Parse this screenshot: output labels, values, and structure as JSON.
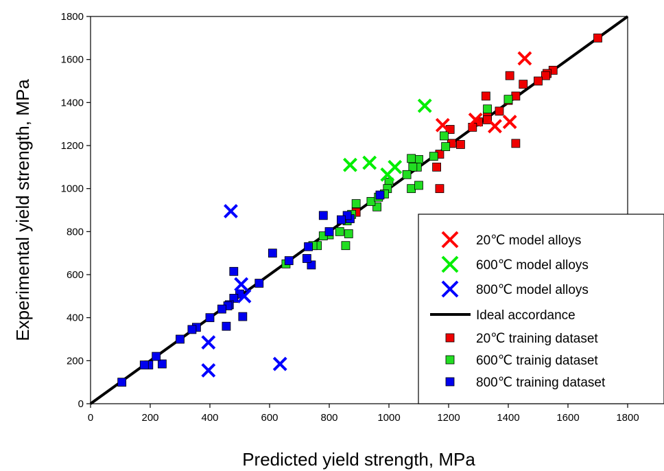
{
  "chart_data": {
    "type": "scatter",
    "xlabel": "Predicted yield strength, MPa",
    "ylabel": "Experimental yield strength, MPa",
    "xlim": [
      0,
      1800
    ],
    "ylim": [
      0,
      1800
    ],
    "xticks": [
      0,
      200,
      400,
      600,
      800,
      1000,
      1200,
      1400,
      1600,
      1800
    ],
    "yticks": [
      0,
      200,
      400,
      600,
      800,
      1000,
      1200,
      1400,
      1600,
      1800
    ],
    "grid": false,
    "legend_position": "lower-right",
    "series": [
      {
        "name": "20℃ model alloys",
        "marker": "x",
        "color": "#ff0000",
        "points": [
          [
            1455,
            1605
          ],
          [
            1180,
            1295
          ],
          [
            1290,
            1320
          ],
          [
            1355,
            1290
          ],
          [
            1405,
            1310
          ]
        ]
      },
      {
        "name": "600℃ model alloys",
        "marker": "x",
        "color": "#00ee00",
        "points": [
          [
            1120,
            1385
          ],
          [
            870,
            1110
          ],
          [
            935,
            1120
          ],
          [
            995,
            1065
          ],
          [
            1020,
            1100
          ]
        ]
      },
      {
        "name": "800℃ model alloys",
        "marker": "x",
        "color": "#0000ff",
        "points": [
          [
            470,
            895
          ],
          [
            505,
            555
          ],
          [
            515,
            500
          ],
          [
            395,
            285
          ],
          [
            395,
            155
          ],
          [
            635,
            185
          ]
        ]
      },
      {
        "name": "Ideal accordance",
        "marker": "line",
        "color": "#000000",
        "points": [
          [
            0,
            0
          ],
          [
            1800,
            1800
          ]
        ]
      },
      {
        "name": "20℃ training dataset",
        "marker": "square",
        "color": "#ee0000",
        "points": [
          [
            1700,
            1700
          ],
          [
            1550,
            1550
          ],
          [
            1530,
            1535
          ],
          [
            1525,
            1525
          ],
          [
            1500,
            1500
          ],
          [
            1450,
            1485
          ],
          [
            1405,
            1525
          ],
          [
            1425,
            1430
          ],
          [
            1400,
            1410
          ],
          [
            1370,
            1360
          ],
          [
            1325,
            1430
          ],
          [
            1330,
            1340
          ],
          [
            1330,
            1320
          ],
          [
            1300,
            1310
          ],
          [
            1280,
            1285
          ],
          [
            1240,
            1205
          ],
          [
            1210,
            1210
          ],
          [
            1205,
            1275
          ],
          [
            1170,
            1160
          ],
          [
            1160,
            1100
          ],
          [
            1170,
            1000
          ],
          [
            1425,
            1210
          ],
          [
            890,
            890
          ]
        ]
      },
      {
        "name": "600℃ trainig dataset",
        "marker": "square",
        "color": "#22dd22",
        "points": [
          [
            1400,
            1415
          ],
          [
            1330,
            1370
          ],
          [
            1190,
            1195
          ],
          [
            1185,
            1245
          ],
          [
            1150,
            1150
          ],
          [
            1100,
            1135
          ],
          [
            1095,
            1100
          ],
          [
            1080,
            1100
          ],
          [
            1075,
            1140
          ],
          [
            1060,
            1065
          ],
          [
            1075,
            1000
          ],
          [
            1100,
            1015
          ],
          [
            1000,
            1030
          ],
          [
            995,
            1000
          ],
          [
            985,
            975
          ],
          [
            960,
            915
          ],
          [
            940,
            940
          ],
          [
            890,
            930
          ],
          [
            875,
            880
          ],
          [
            865,
            790
          ],
          [
            860,
            850
          ],
          [
            855,
            735
          ],
          [
            835,
            800
          ],
          [
            800,
            785
          ],
          [
            780,
            780
          ],
          [
            760,
            735
          ],
          [
            745,
            735
          ],
          [
            655,
            650
          ],
          [
            965,
            960
          ]
        ]
      },
      {
        "name": "800℃ training dataset",
        "marker": "square",
        "color": "#0000ee",
        "points": [
          [
            970,
            970
          ],
          [
            870,
            860
          ],
          [
            860,
            875
          ],
          [
            840,
            855
          ],
          [
            800,
            800
          ],
          [
            780,
            875
          ],
          [
            740,
            645
          ],
          [
            730,
            730
          ],
          [
            725,
            675
          ],
          [
            665,
            665
          ],
          [
            610,
            700
          ],
          [
            565,
            560
          ],
          [
            510,
            405
          ],
          [
            500,
            510
          ],
          [
            480,
            490
          ],
          [
            480,
            615
          ],
          [
            465,
            460
          ],
          [
            460,
            455
          ],
          [
            455,
            360
          ],
          [
            440,
            440
          ],
          [
            400,
            400
          ],
          [
            355,
            355
          ],
          [
            340,
            345
          ],
          [
            300,
            300
          ],
          [
            240,
            185
          ],
          [
            220,
            220
          ],
          [
            195,
            180
          ],
          [
            180,
            180
          ],
          [
            105,
            100
          ]
        ]
      }
    ]
  }
}
